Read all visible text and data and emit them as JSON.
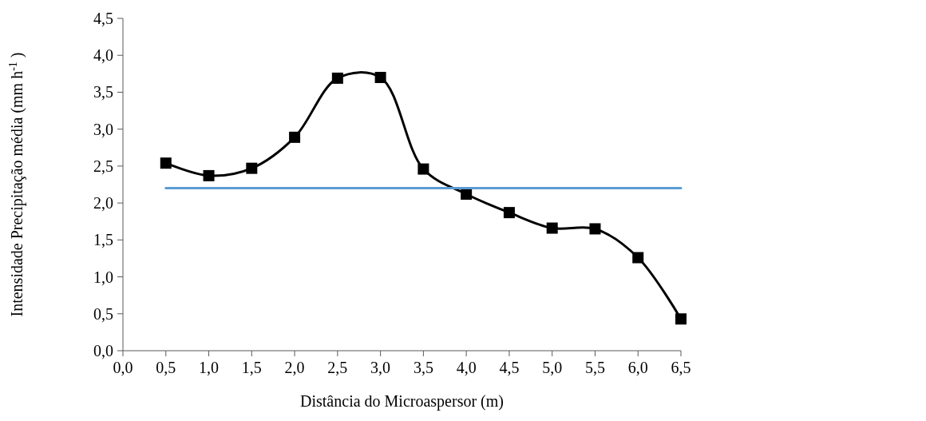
{
  "chart_data": {
    "type": "line",
    "xlabel": "Distância do Microaspersor (m)",
    "ylabel": "Intensidade Precipitação média (mm h$^{-1}$ )",
    "x": [
      0.5,
      1.0,
      1.5,
      2.0,
      2.5,
      3.0,
      3.5,
      4.0,
      4.5,
      5.0,
      5.5,
      6.0,
      6.5
    ],
    "series": [
      {
        "color": "#000000",
        "marker": "square",
        "values": [
          2.54,
          2.37,
          2.47,
          2.89,
          3.69,
          3.7,
          2.46,
          2.12,
          1.87,
          1.66,
          1.65,
          1.26,
          0.43
        ]
      },
      {
        "color": "#5b9bd5",
        "marker": "none",
        "x": [
          0.5,
          6.5
        ],
        "values": [
          2.2,
          2.2
        ]
      }
    ],
    "xlim": [
      0,
      6.5
    ],
    "xticks": [
      {
        "value": 0,
        "label": "0,0"
      },
      {
        "value": 0.5,
        "label": "0,5"
      },
      {
        "value": 1,
        "label": "1,0"
      },
      {
        "value": 1.5,
        "label": "1,5"
      },
      {
        "value": 2,
        "label": "2,0"
      },
      {
        "value": 2.5,
        "label": "2,5"
      },
      {
        "value": 3,
        "label": "3,0"
      },
      {
        "value": 3.5,
        "label": "3,5"
      },
      {
        "value": 4,
        "label": "4,0"
      },
      {
        "value": 4.5,
        "label": "4,5"
      },
      {
        "value": 5,
        "label": "5,0"
      },
      {
        "value": 5.5,
        "label": "5,5"
      },
      {
        "value": 6,
        "label": "6,0"
      },
      {
        "value": 6.5,
        "label": "6,5"
      }
    ],
    "ylim": [
      0,
      4.5
    ],
    "yticks": [
      {
        "value": 0,
        "label": "0,0"
      },
      {
        "value": 0.5,
        "label": "0,5"
      },
      {
        "value": 1,
        "label": "1,0"
      },
      {
        "value": 1.5,
        "label": "1,5"
      },
      {
        "value": 2,
        "label": "2,0"
      },
      {
        "value": 2.5,
        "label": "2,5"
      },
      {
        "value": 3,
        "label": "3,0"
      },
      {
        "value": 3.5,
        "label": "3,5"
      },
      {
        "value": 4,
        "label": "4,0"
      },
      {
        "value": 4.5,
        "label": "4,5"
      }
    ],
    "line_style": "solid"
  }
}
